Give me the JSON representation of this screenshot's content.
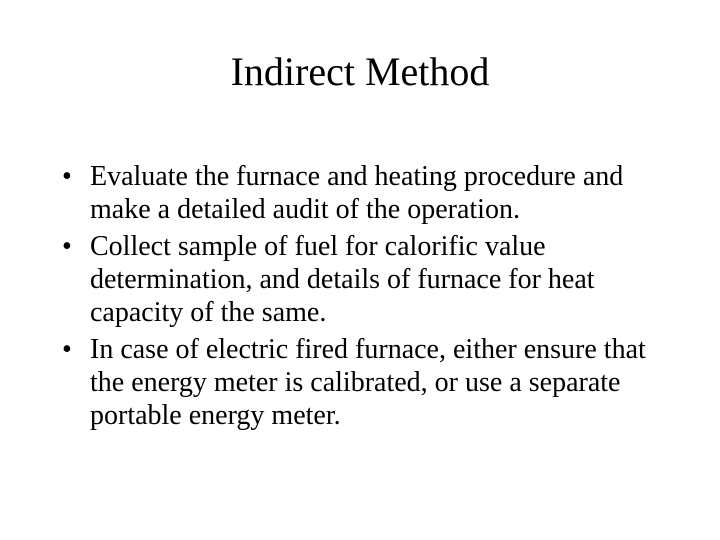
{
  "slide": {
    "title": "Indirect Method",
    "bullets": [
      "Evaluate the furnace and heating procedure and make a detailed audit of the operation.",
      "Collect sample of fuel for calorific value determination, and details of furnace for heat capacity of the same.",
      "In case of electric fired furnace, either ensure that the energy meter is calibrated, or use a separate portable energy meter."
    ],
    "title_fontsize": 40,
    "body_fontsize": 28,
    "text_color": "#000000",
    "background_color": "#ffffff",
    "font_family": "Times New Roman"
  }
}
